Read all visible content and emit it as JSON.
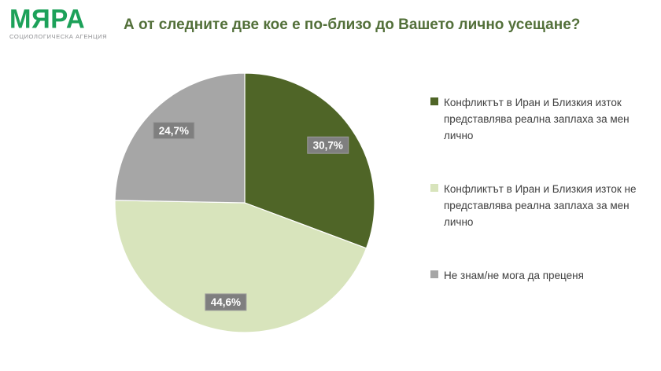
{
  "logo": {
    "name": "МЯРА",
    "subtitle": "СОЦИОЛОГИЧЕСКА АГЕНЦИЯ"
  },
  "header": {
    "title": "А от следните две кое е по-близо до Вашето лично усещане?"
  },
  "colors": {
    "logo_green": "#1CA159",
    "title_green": "#53703A",
    "slice_dark_green": "#4F6527",
    "slice_light_green": "#D8E4BC",
    "slice_gray": "#A6A6A6",
    "slice_border": "#FFFFFF",
    "data_label_bg": "#7F7F7F",
    "data_label_border": "#9B9B9B",
    "data_label_text": "#FFFFFF",
    "legend_text": "#404040"
  },
  "chart_data": {
    "type": "pie",
    "title": "А от следните две кое е по-близо до Вашето лично усещане?",
    "start_angle_deg": 0,
    "direction": "clockwise",
    "legend_position": "right",
    "label_radius_fraction": 0.78,
    "slices": [
      {
        "label": "Конфликтът в Иран и Близкия изток представлява реална заплаха за мен лично",
        "value": 30.7,
        "display": "30,7%",
        "color": "#4F6527"
      },
      {
        "label": "Конфликтът в Иран и Близкия изток не представлява реална заплаха за мен лично",
        "value": 44.6,
        "display": "44,6%",
        "color": "#D8E4BC"
      },
      {
        "label": "Не знам/не мога да преценя",
        "value": 24.7,
        "display": "24,7%",
        "color": "#A6A6A6"
      }
    ]
  }
}
